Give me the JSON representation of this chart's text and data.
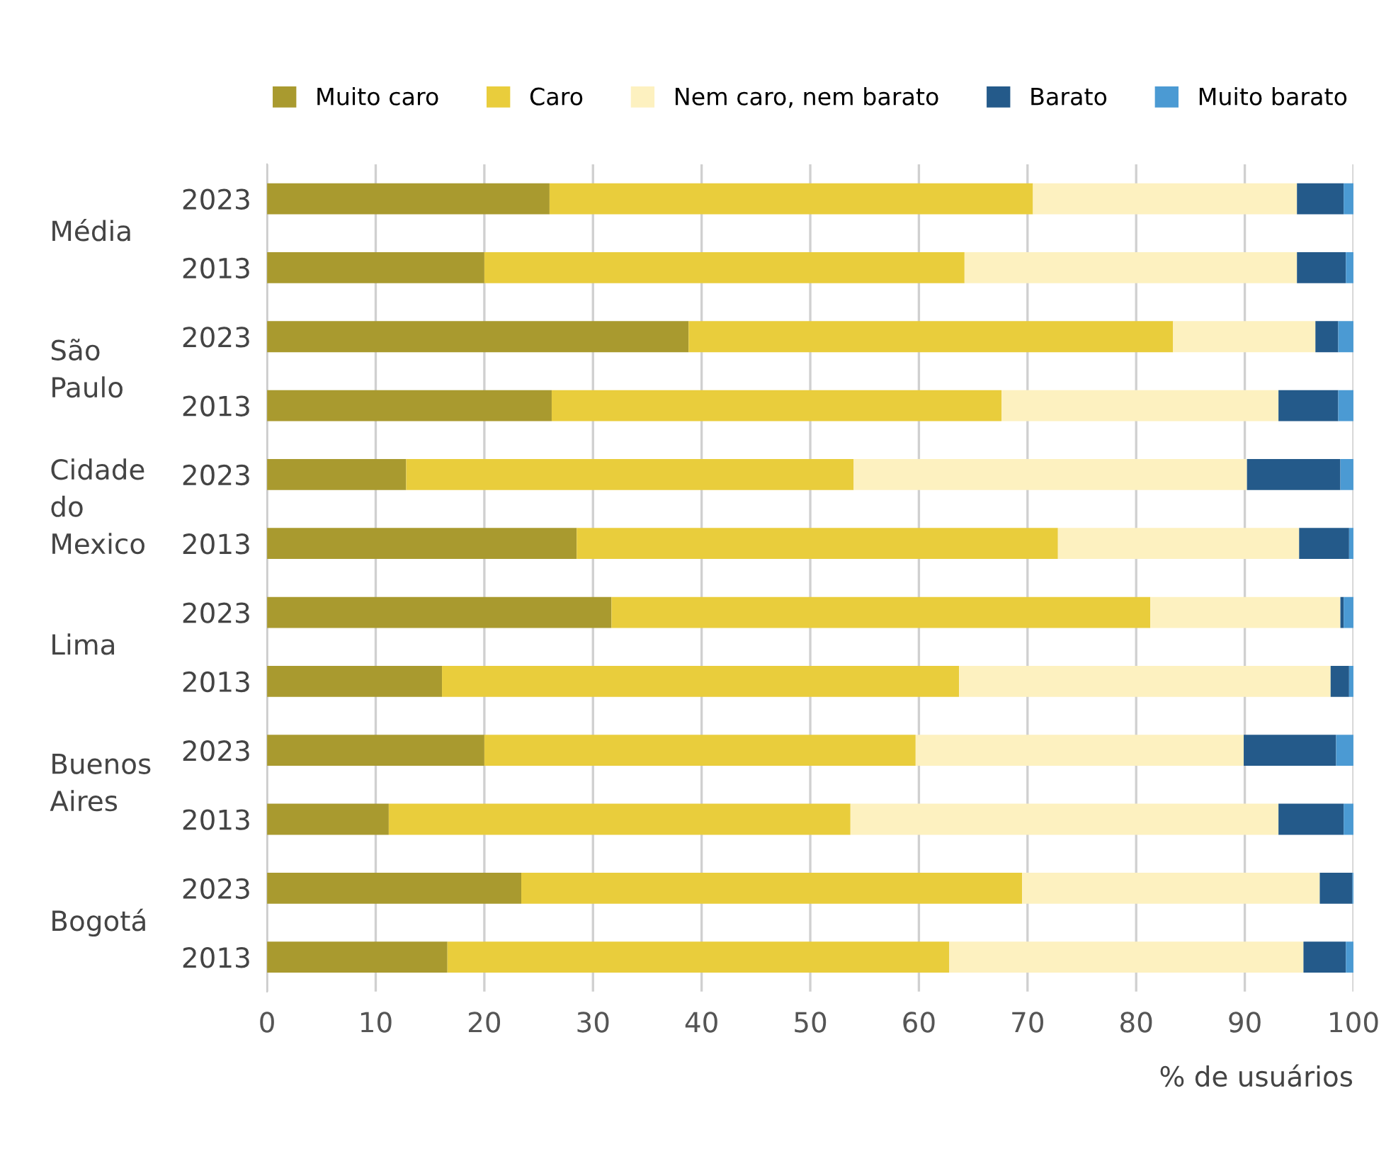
{
  "chart_data": {
    "type": "bar",
    "orientation": "horizontal",
    "stacked": true,
    "categories": [
      "2023",
      "2013",
      "2023",
      "2013",
      "2023",
      "2013",
      "2023",
      "2013",
      "2023",
      "2013",
      "2023",
      "2013"
    ],
    "annotations": [
      "Média",
      "São Paulo",
      "Cidade do Mexico",
      "Lima",
      "Buenos Aires",
      "Bogotá"
    ],
    "series": [
      {
        "name": "Muito caro",
        "color": "#a99a2f",
        "values": [
          26.0,
          20.0,
          38.8,
          26.2,
          12.8,
          28.5,
          31.7,
          16.1,
          20.0,
          11.2,
          23.4,
          16.6
        ]
      },
      {
        "name": "Caro",
        "color": "#e9cd3c",
        "values": [
          44.5,
          44.2,
          44.6,
          41.4,
          41.2,
          44.3,
          49.6,
          47.6,
          39.7,
          42.5,
          46.1,
          46.2
        ]
      },
      {
        "name": "Nem caro, nem barato",
        "color": "#fdf1c0",
        "values": [
          24.3,
          30.6,
          13.1,
          25.5,
          36.2,
          22.2,
          17.5,
          34.2,
          30.2,
          39.4,
          27.4,
          32.6
        ]
      },
      {
        "name": "Barato",
        "color": "#245a8a",
        "values": [
          4.3,
          4.5,
          2.1,
          5.5,
          8.6,
          4.6,
          0.3,
          1.7,
          8.5,
          6.0,
          3.0,
          3.9
        ]
      },
      {
        "name": "Muito barato",
        "color": "#4b9ad3",
        "values": [
          0.9,
          0.7,
          1.4,
          1.4,
          1.2,
          0.4,
          0.9,
          0.4,
          1.6,
          0.9,
          0.1,
          0.7
        ]
      }
    ],
    "xlabel": "% de usuários",
    "xlim": [
      0,
      100
    ],
    "xticks": [
      0,
      10,
      20,
      30,
      40,
      50,
      60,
      70,
      80,
      90,
      100
    ],
    "grid": "x",
    "legend": "top"
  }
}
